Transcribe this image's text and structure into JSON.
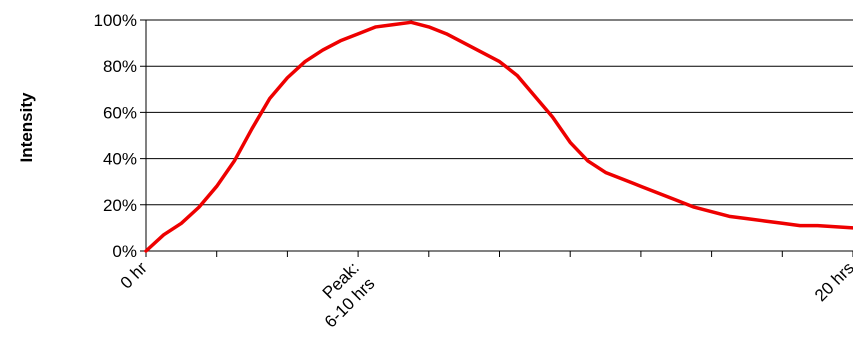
{
  "chart_data": {
    "type": "line",
    "title": "",
    "xlabel": "",
    "ylabel": "Intensity",
    "ylim": [
      0,
      100
    ],
    "y_ticks": [
      "0%",
      "20%",
      "40%",
      "60%",
      "80%",
      "100%"
    ],
    "y_tick_values": [
      0,
      20,
      40,
      60,
      80,
      100
    ],
    "grid": "horizontal",
    "x_range_hours": [
      0,
      20
    ],
    "x_tick_hours": [
      0,
      2,
      4,
      6,
      8,
      10,
      12,
      14,
      16,
      18,
      20
    ],
    "x_tick_labels": [
      {
        "hour": 0,
        "lines": [
          "0 hr"
        ]
      },
      {
        "hour": 6,
        "lines": [
          "Peak:",
          "6-10 hrs"
        ]
      },
      {
        "hour": 20,
        "lines": [
          "20 hrs"
        ]
      }
    ],
    "series": [
      {
        "color": "#ee0000",
        "x": [
          0,
          0.5,
          1,
          1.5,
          2,
          2.5,
          3,
          3.5,
          4,
          4.5,
          5,
          5.5,
          6,
          6.5,
          7,
          7.5,
          8,
          8.5,
          9,
          9.5,
          10,
          10.5,
          11,
          11.5,
          12,
          12.5,
          13,
          13.5,
          14,
          14.5,
          15,
          15.5,
          16,
          16.5,
          17,
          17.5,
          18,
          18.5,
          19,
          19.5,
          20
        ],
        "values": [
          0,
          7,
          12,
          19,
          28,
          39,
          53,
          66,
          75,
          82,
          87,
          91,
          94,
          97,
          98,
          99,
          97,
          94,
          90,
          86,
          82,
          76,
          67,
          58,
          47,
          39,
          34,
          31,
          28,
          25,
          22,
          19,
          17,
          15,
          14,
          13,
          12,
          11,
          11,
          10.5,
          10
        ]
      }
    ]
  }
}
